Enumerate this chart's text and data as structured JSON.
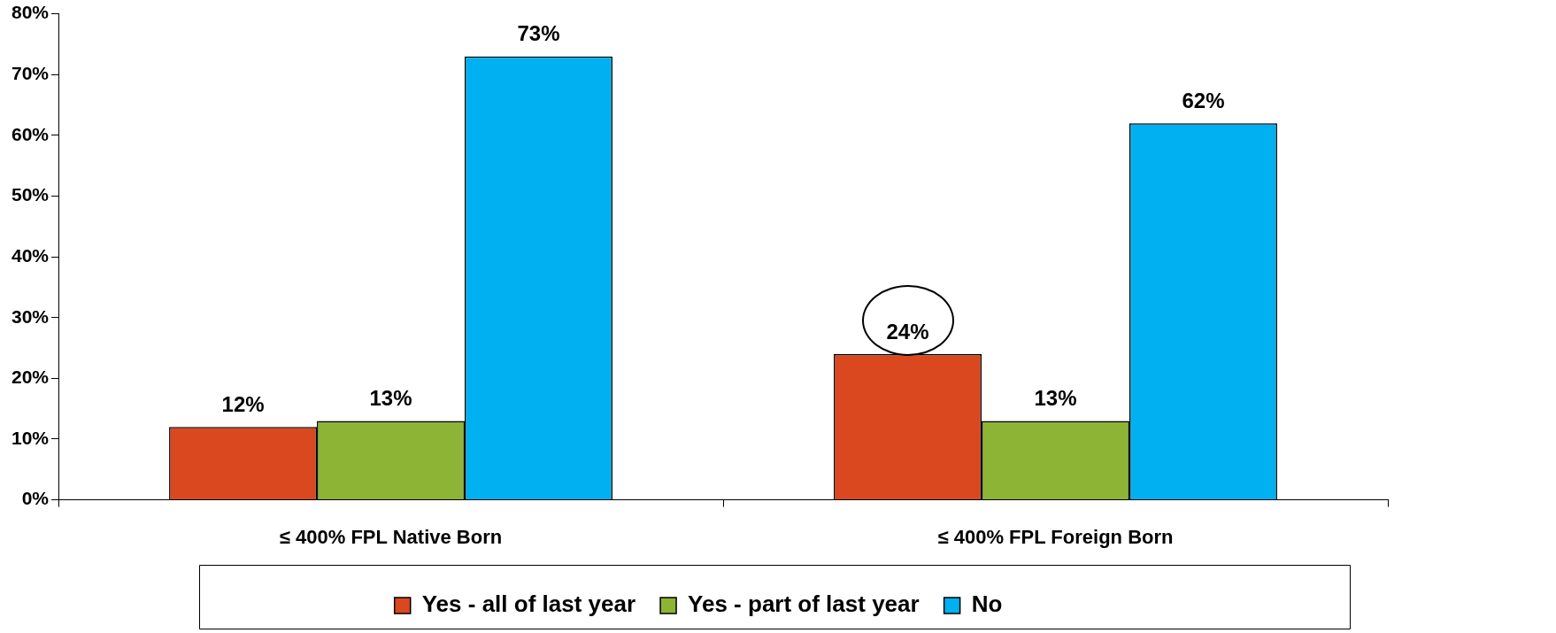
{
  "chart_data": {
    "type": "bar",
    "categories": [
      "≤ 400% FPL Native Born",
      "≤ 400% FPL Foreign Born"
    ],
    "series": [
      {
        "name": "Yes - all of last year",
        "color": "#d9481f",
        "values": [
          12,
          24
        ],
        "value_labels": [
          "12%",
          "24%"
        ]
      },
      {
        "name": "Yes - part of last year",
        "color": "#8db434",
        "values": [
          13,
          13
        ],
        "value_labels": [
          "13%",
          "13%"
        ]
      },
      {
        "name": "No",
        "color": "#00b0f0",
        "values": [
          73,
          62
        ],
        "value_labels": [
          "73%",
          "62%"
        ]
      }
    ],
    "ylim": [
      0,
      80
    ],
    "yticks": [
      {
        "value": 0,
        "label": "0%"
      },
      {
        "value": 10,
        "label": "10%"
      },
      {
        "value": 20,
        "label": "20%"
      },
      {
        "value": 30,
        "label": "30%"
      },
      {
        "value": 40,
        "label": "40%"
      },
      {
        "value": 50,
        "label": "50%"
      },
      {
        "value": 60,
        "label": "60%"
      },
      {
        "value": 70,
        "label": "70%"
      },
      {
        "value": 80,
        "label": "80%"
      }
    ],
    "grid": false,
    "legend": "bottom"
  }
}
